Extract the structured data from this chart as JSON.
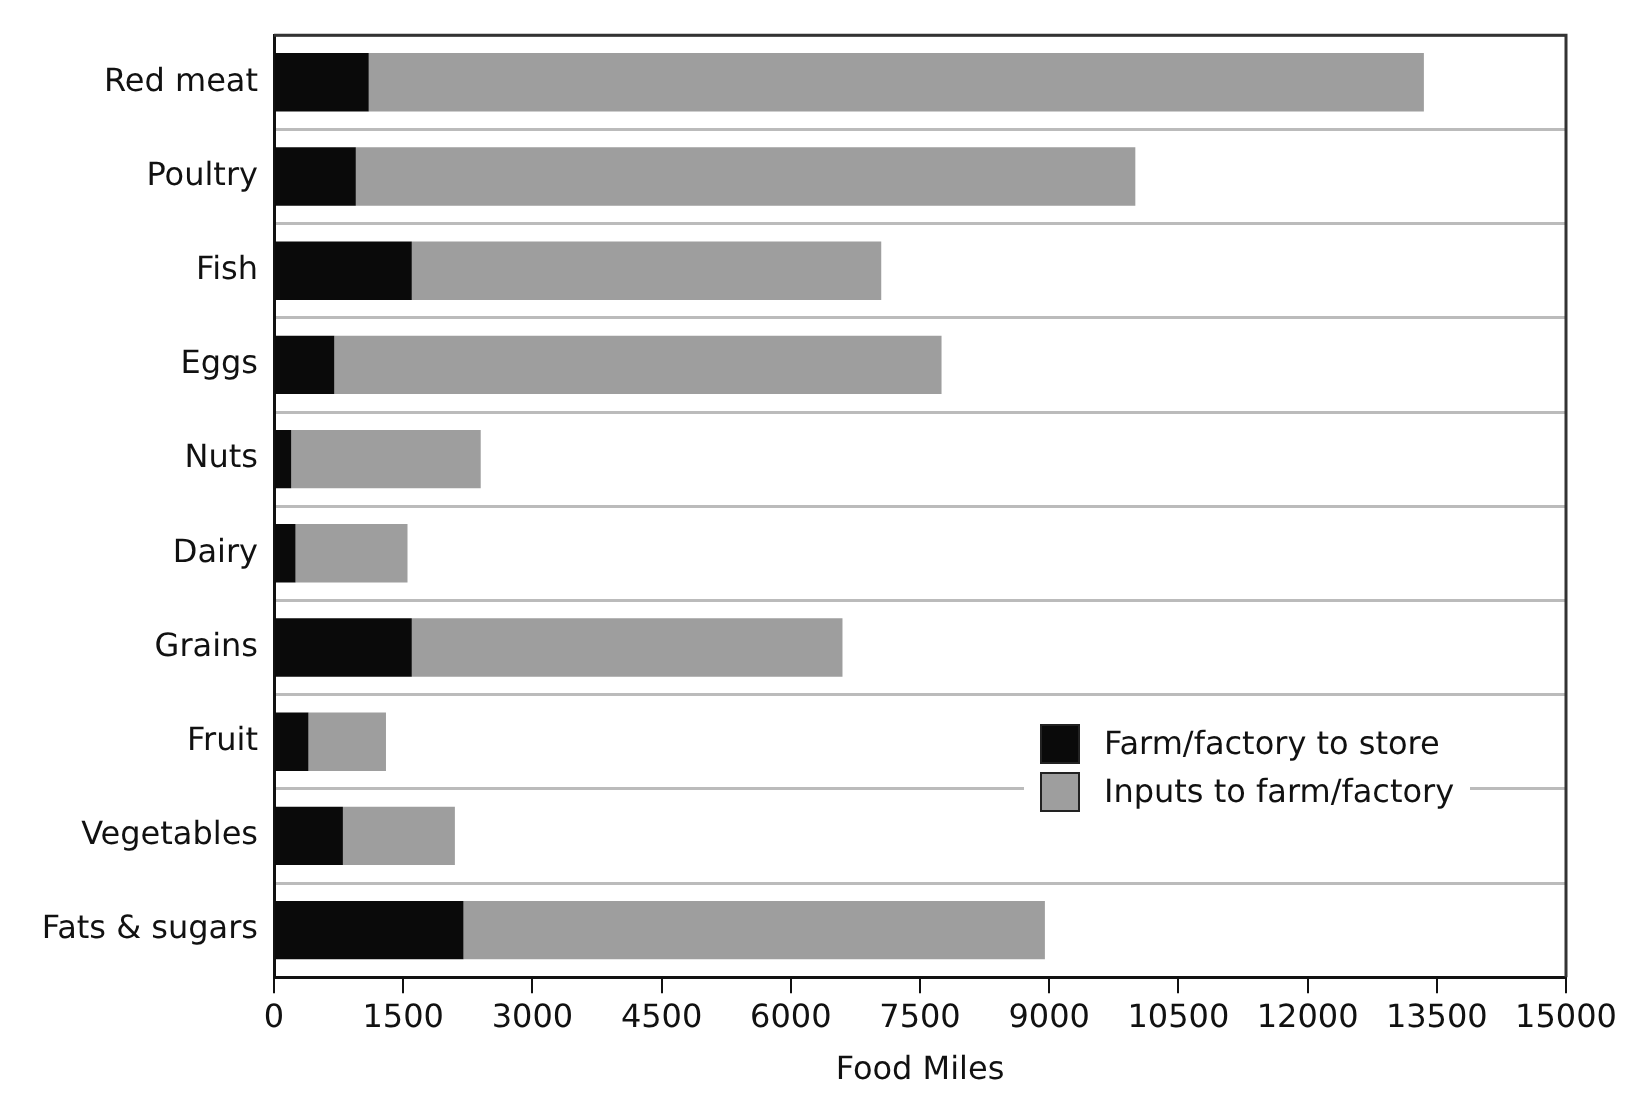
{
  "chart_data": {
    "type": "bar",
    "orientation": "horizontal",
    "stacked": true,
    "xlabel": "Food Miles",
    "categories": [
      "Red meat",
      "Poultry",
      "Fish",
      "Eggs",
      "Nuts",
      "Dairy",
      "Grains",
      "Fruit",
      "Vegetables",
      "Fats & sugars"
    ],
    "series": [
      {
        "name": "Farm/factory to store",
        "color": "#0a0a0a",
        "values": [
          1100,
          950,
          1600,
          700,
          200,
          250,
          1600,
          400,
          800,
          2200
        ]
      },
      {
        "name": "Inputs to farm/factory",
        "color": "#9e9e9e",
        "values": [
          12250,
          9050,
          5450,
          7050,
          2200,
          1300,
          5000,
          900,
          1300,
          6750
        ]
      }
    ],
    "xlim": [
      0,
      15000
    ],
    "xticks": [
      0,
      1500,
      3000,
      4500,
      6000,
      7500,
      9000,
      10500,
      12000,
      13500,
      15000
    ],
    "grid": "y",
    "legend": "bottom right"
  }
}
